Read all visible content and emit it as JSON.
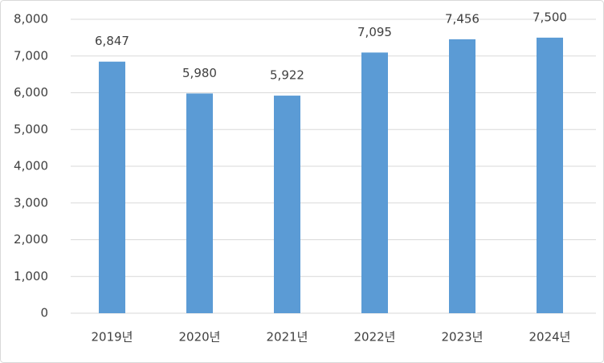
{
  "chart_data": {
    "type": "bar",
    "categories": [
      "2019년",
      "2020년",
      "2021년",
      "2022년",
      "2023년",
      "2024년"
    ],
    "values": [
      6847,
      5980,
      5922,
      7095,
      7456,
      7500
    ],
    "value_labels": [
      "6,847",
      "5,980",
      "5,922",
      "7,095",
      "7,456",
      "7,500"
    ],
    "color": "#5b9bd5",
    "ylim": [
      0,
      8000
    ],
    "yticks": [
      0,
      {
        "value": 1000,
        "label": "1,000"
      },
      {
        "value": 2000,
        "label": "2,000"
      },
      {
        "value": 3000,
        "label": "3,000"
      },
      {
        "value": 4000,
        "label": "4,000"
      },
      {
        "value": 5000,
        "label": "5,000"
      },
      {
        "value": 6000,
        "label": "6,000"
      },
      {
        "value": 7000,
        "label": "7,000"
      },
      {
        "value": 8000,
        "label": "8,000"
      }
    ],
    "grid": true
  }
}
